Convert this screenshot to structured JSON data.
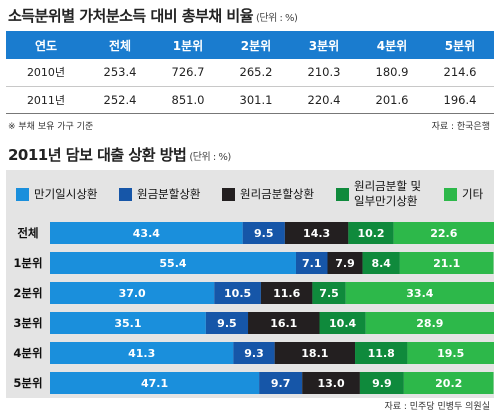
{
  "table": {
    "title": "소득분위별 가처분소득 대비 총부채 비율",
    "unit": "(단위 : %)",
    "headers": [
      "연도",
      "전체",
      "1분위",
      "2분위",
      "3분위",
      "4분위",
      "5분위"
    ],
    "rows": [
      {
        "year": "2010년",
        "values": [
          "253.4",
          "726.7",
          "265.2",
          "210.3",
          "180.9",
          "214.6"
        ]
      },
      {
        "year": "2011년",
        "values": [
          "252.4",
          "851.0",
          "301.1",
          "220.4",
          "201.6",
          "196.4"
        ]
      }
    ],
    "note": "※ 부채 보유 가구 기준",
    "source": "자료 : 한국은행"
  },
  "chart_data": {
    "type": "bar",
    "orientation": "horizontal",
    "stacked": true,
    "title": "2011년 담보 대출 상환 방법",
    "unit": "(단위 : %)",
    "categories": [
      "전체",
      "1분위",
      "2분위",
      "3분위",
      "4분위",
      "5분위"
    ],
    "series": [
      {
        "name": "만기일시상환",
        "color": "#1a8fdc",
        "values": [
          43.4,
          55.4,
          37.0,
          35.1,
          41.3,
          47.1
        ]
      },
      {
        "name": "원금분할상환",
        "color": "#1656a8",
        "values": [
          9.5,
          7.1,
          10.5,
          9.5,
          9.3,
          9.7
        ]
      },
      {
        "name": "원리금분할상환",
        "color": "#231f20",
        "values": [
          14.3,
          7.9,
          11.6,
          16.1,
          18.1,
          13.0
        ]
      },
      {
        "name": "원리금분할 및 일부만기상환",
        "color": "#0f8a3c",
        "values": [
          10.2,
          8.4,
          7.5,
          10.4,
          11.8,
          9.9
        ]
      },
      {
        "name": "기타",
        "color": "#2db84a",
        "values": [
          22.6,
          21.1,
          33.4,
          28.9,
          19.5,
          20.2
        ]
      }
    ],
    "xlim": [
      0,
      100
    ],
    "legend_position": "top",
    "source": "자료 : 민주당 민병두 의원실"
  }
}
